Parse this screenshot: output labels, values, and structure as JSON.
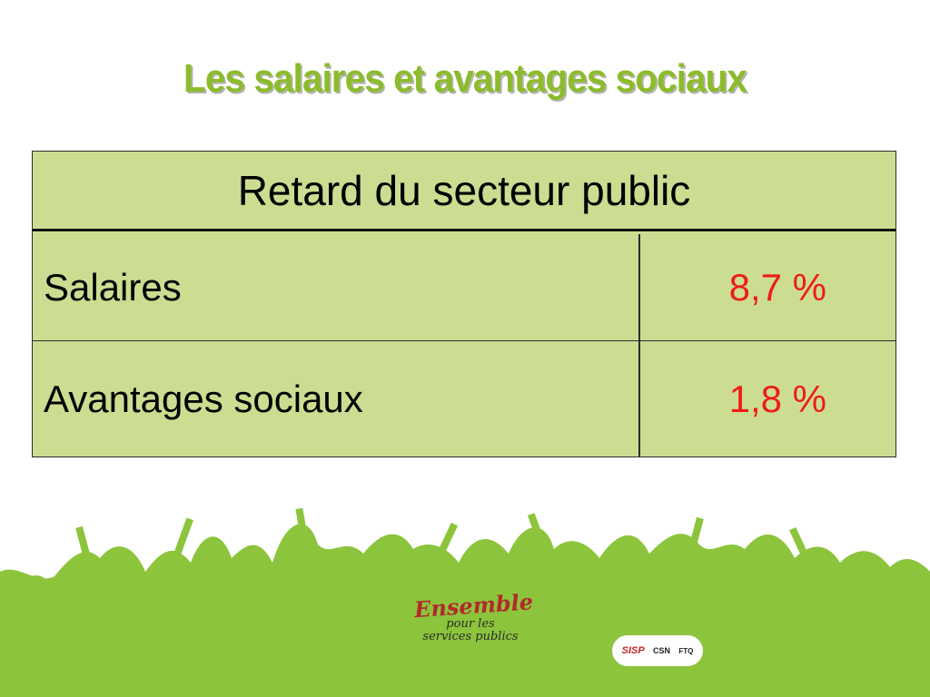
{
  "title": "Les salaires et avantages sociaux",
  "table": {
    "header": "Retard du secteur public",
    "rows": [
      {
        "label": "Salaires",
        "value": "8,7 %"
      },
      {
        "label": "Avantages sociaux",
        "value": "1,8 %"
      }
    ]
  },
  "logos": {
    "ensemble_line1": "Ensemble",
    "ensemble_line2": "pour les",
    "ensemble_line3": "services publics",
    "union1": "SISP",
    "union2": "CSN",
    "union3": "FTQ"
  },
  "colors": {
    "title": "#8cbc2a",
    "table_bg": "#ccdd91",
    "value": "#ee1c1c",
    "crowd": "#8cc43c"
  }
}
